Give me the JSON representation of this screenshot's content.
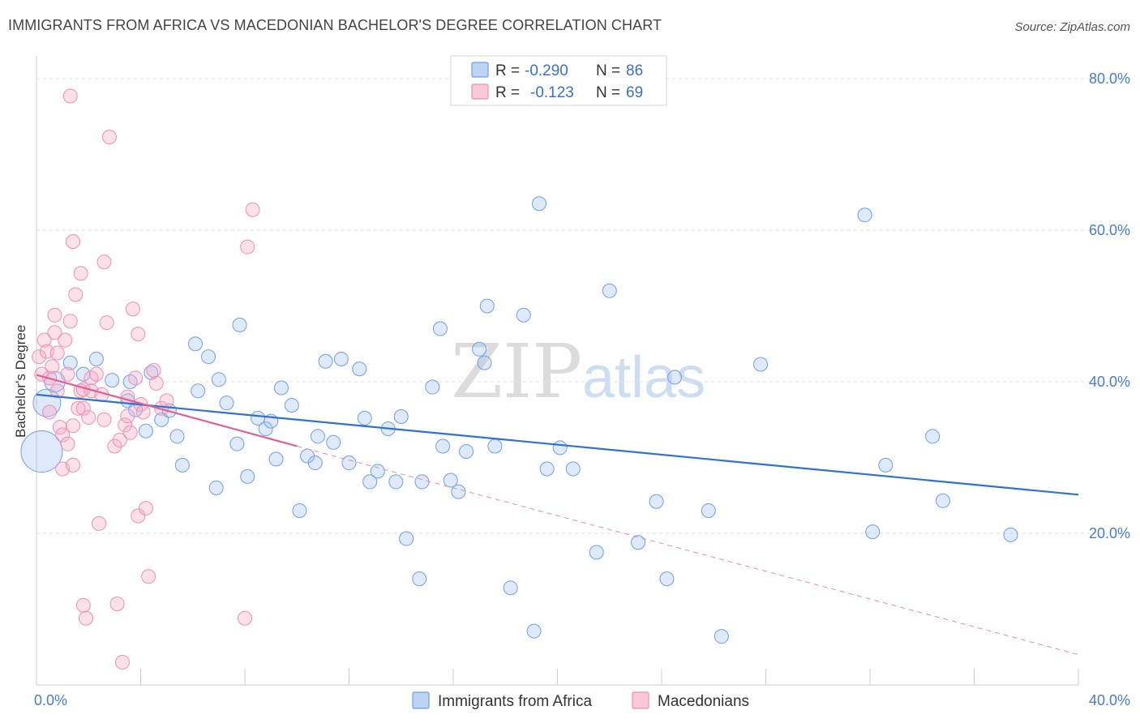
{
  "title": "IMMIGRANTS FROM AFRICA VS MACEDONIAN BACHELOR'S DEGREE CORRELATION CHART",
  "source": "Source: ZipAtlas.com",
  "watermark": {
    "zip": "ZIP",
    "atlas": "atlas"
  },
  "colors": {
    "blue": "#6fa0e6",
    "blue_line": "#2f72d0",
    "pink": "#f08fb0",
    "pink_line": "#e06092"
  },
  "stats": {
    "blue": {
      "r_label": "R = ",
      "r": "-0.290",
      "n_label": "N = ",
      "n": "86"
    },
    "pink": {
      "r_label": "R = ",
      "r": "-0.123",
      "n_label": "N = ",
      "n": "69"
    }
  },
  "chart_data": {
    "type": "scatter",
    "xlabel": "",
    "ylabel": "Bachelor's Degree",
    "xlim": [
      0,
      40
    ],
    "ylim": [
      0,
      82
    ],
    "x_tick_labels": [
      "0.0%",
      "40.0%"
    ],
    "y_ticks": [
      20,
      40,
      60,
      80
    ],
    "y_tick_labels": [
      "20.0%",
      "40.0%",
      "60.0%",
      "80.0%"
    ],
    "grid": true,
    "legend_position": "bottom",
    "series": [
      {
        "name": "Immigrants from Africa",
        "color": "#6fa0e6",
        "trend": {
          "x": [
            0,
            40
          ],
          "y": [
            38.3,
            25.1
          ],
          "style": "solid"
        },
        "points": [
          [
            0.2,
            30.8,
            3
          ],
          [
            0.4,
            37.2,
            2
          ],
          [
            0.7,
            40.0,
            1.5
          ],
          [
            1.3,
            42.5,
            1
          ],
          [
            2.3,
            43.0,
            1
          ],
          [
            1.8,
            41.0,
            1
          ],
          [
            2.9,
            40.2,
            1
          ],
          [
            3.6,
            40.0,
            1
          ],
          [
            3.5,
            37.5,
            1
          ],
          [
            3.8,
            36.3,
            1
          ],
          [
            4.2,
            33.5,
            1
          ],
          [
            4.4,
            41.2,
            1
          ],
          [
            4.8,
            35.0,
            1
          ],
          [
            5.1,
            36.2,
            1
          ],
          [
            5.4,
            32.8,
            1
          ],
          [
            5.6,
            29.0,
            1
          ],
          [
            6.1,
            45.0,
            1
          ],
          [
            6.2,
            38.8,
            1
          ],
          [
            6.6,
            43.3,
            1
          ],
          [
            6.9,
            26.0,
            1
          ],
          [
            7.0,
            40.3,
            1
          ],
          [
            7.3,
            37.2,
            1
          ],
          [
            7.7,
            31.8,
            1
          ],
          [
            7.8,
            47.5,
            1
          ],
          [
            8.1,
            27.5,
            1
          ],
          [
            8.5,
            35.2,
            1
          ],
          [
            8.8,
            33.8,
            1
          ],
          [
            9.0,
            34.8,
            1
          ],
          [
            9.2,
            29.8,
            1
          ],
          [
            9.4,
            39.2,
            1
          ],
          [
            9.8,
            36.9,
            1
          ],
          [
            10.1,
            23.0,
            1
          ],
          [
            10.4,
            30.2,
            1
          ],
          [
            10.7,
            29.3,
            1
          ],
          [
            10.8,
            32.8,
            1
          ],
          [
            11.1,
            42.7,
            1
          ],
          [
            11.4,
            32.0,
            1
          ],
          [
            11.7,
            43.0,
            1
          ],
          [
            12.0,
            29.3,
            1
          ],
          [
            12.4,
            41.7,
            1
          ],
          [
            12.6,
            35.2,
            1
          ],
          [
            12.8,
            26.8,
            1
          ],
          [
            13.1,
            28.2,
            1
          ],
          [
            13.5,
            33.8,
            1
          ],
          [
            13.8,
            26.8,
            1
          ],
          [
            14.0,
            35.4,
            1
          ],
          [
            14.2,
            19.3,
            1
          ],
          [
            14.7,
            14.0,
            1
          ],
          [
            14.8,
            26.8,
            1
          ],
          [
            15.2,
            39.3,
            1
          ],
          [
            15.5,
            47.0,
            1
          ],
          [
            15.6,
            31.5,
            1
          ],
          [
            15.9,
            27.0,
            1
          ],
          [
            16.2,
            25.5,
            1
          ],
          [
            16.5,
            30.8,
            1
          ],
          [
            17.0,
            44.3,
            1
          ],
          [
            17.2,
            42.5,
            1
          ],
          [
            17.3,
            50.0,
            1
          ],
          [
            17.6,
            31.5,
            1
          ],
          [
            18.2,
            12.8,
            1
          ],
          [
            18.7,
            48.8,
            1
          ],
          [
            19.1,
            7.1,
            1
          ],
          [
            19.3,
            63.5,
            1
          ],
          [
            19.6,
            28.5,
            1
          ],
          [
            20.1,
            31.3,
            1
          ],
          [
            20.6,
            28.5,
            1
          ],
          [
            21.5,
            17.5,
            1
          ],
          [
            22.0,
            52.0,
            1
          ],
          [
            23.1,
            18.8,
            1
          ],
          [
            23.8,
            24.2,
            1
          ],
          [
            24.2,
            14.0,
            1
          ],
          [
            24.5,
            40.6,
            1
          ],
          [
            25.8,
            23.0,
            1
          ],
          [
            26.3,
            6.4,
            1
          ],
          [
            27.8,
            42.3,
            1
          ],
          [
            31.8,
            62.0,
            1
          ],
          [
            32.1,
            20.2,
            1
          ],
          [
            32.6,
            29.0,
            1
          ],
          [
            34.4,
            32.8,
            1
          ],
          [
            34.8,
            24.3,
            1
          ],
          [
            37.4,
            19.8,
            1
          ]
        ]
      },
      {
        "name": "Macedonians",
        "color": "#f08fb0",
        "trend": {
          "x": [
            0,
            10
          ],
          "y": [
            40.9,
            31.5
          ],
          "style": "solid",
          "extend_to": [
            40,
            4.0
          ]
        },
        "points": [
          [
            0.1,
            43.3,
            1
          ],
          [
            0.2,
            41.0,
            1
          ],
          [
            0.3,
            45.5,
            1
          ],
          [
            0.4,
            44.0,
            1
          ],
          [
            0.5,
            40.5,
            1
          ],
          [
            0.5,
            36.0,
            1
          ],
          [
            0.6,
            42.0,
            1
          ],
          [
            0.7,
            46.5,
            1
          ],
          [
            0.7,
            48.8,
            1
          ],
          [
            0.8,
            43.8,
            1
          ],
          [
            0.8,
            38.8,
            1
          ],
          [
            0.9,
            34.0,
            1
          ],
          [
            1.0,
            33.0,
            1
          ],
          [
            1.0,
            28.5,
            1
          ],
          [
            1.1,
            45.5,
            1
          ],
          [
            1.2,
            41.0,
            1
          ],
          [
            1.2,
            31.8,
            1
          ],
          [
            1.3,
            77.7,
            1
          ],
          [
            1.3,
            48.0,
            1
          ],
          [
            1.4,
            58.5,
            1
          ],
          [
            1.4,
            34.2,
            1
          ],
          [
            1.4,
            29.0,
            1
          ],
          [
            1.5,
            51.5,
            1
          ],
          [
            1.6,
            36.5,
            1
          ],
          [
            1.7,
            54.3,
            1
          ],
          [
            1.7,
            38.8,
            1
          ],
          [
            1.8,
            36.5,
            1
          ],
          [
            1.8,
            39.0,
            1
          ],
          [
            1.8,
            10.5,
            1
          ],
          [
            1.9,
            8.8,
            1
          ],
          [
            2.0,
            35.3,
            1
          ],
          [
            2.1,
            38.8,
            1
          ],
          [
            2.1,
            40.5,
            1
          ],
          [
            2.3,
            41.0,
            1
          ],
          [
            2.4,
            21.3,
            1
          ],
          [
            2.5,
            38.3,
            1
          ],
          [
            2.6,
            35.0,
            1
          ],
          [
            2.6,
            55.8,
            1
          ],
          [
            2.7,
            47.8,
            1
          ],
          [
            2.8,
            72.3,
            1
          ],
          [
            3.0,
            31.5,
            1
          ],
          [
            3.1,
            10.7,
            1
          ],
          [
            3.2,
            32.3,
            1
          ],
          [
            3.3,
            3.0,
            1
          ],
          [
            3.4,
            34.3,
            1
          ],
          [
            3.5,
            35.5,
            1
          ],
          [
            3.5,
            38.0,
            1
          ],
          [
            3.6,
            33.3,
            1
          ],
          [
            3.7,
            49.6,
            1
          ],
          [
            3.8,
            40.5,
            1
          ],
          [
            3.9,
            22.3,
            1
          ],
          [
            3.9,
            46.3,
            1
          ],
          [
            4.0,
            37.0,
            1
          ],
          [
            4.1,
            36.0,
            1
          ],
          [
            4.2,
            23.3,
            1
          ],
          [
            4.3,
            14.3,
            1
          ],
          [
            4.5,
            41.5,
            1
          ],
          [
            4.6,
            39.8,
            1
          ],
          [
            4.8,
            36.5,
            1
          ],
          [
            5.0,
            37.5,
            1
          ],
          [
            8.0,
            8.8,
            1
          ],
          [
            8.1,
            57.8,
            1
          ],
          [
            8.3,
            62.7,
            1
          ]
        ]
      }
    ]
  },
  "legend": {
    "blue_label": "Immigrants from Africa",
    "pink_label": "Macedonians"
  }
}
